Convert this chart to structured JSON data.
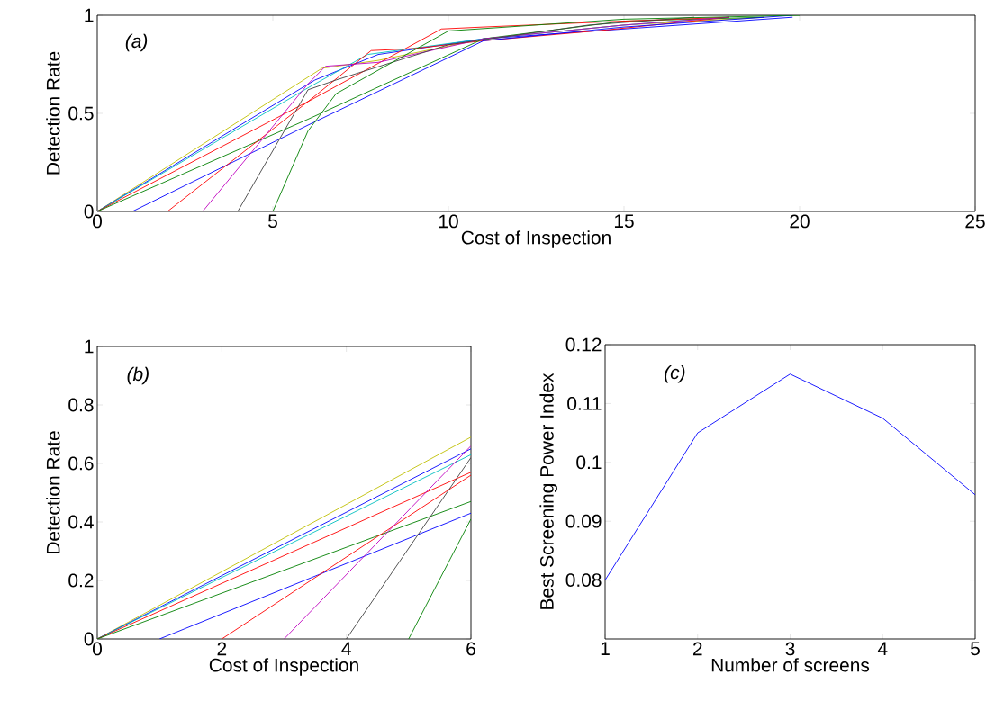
{
  "chart_data": [
    {
      "type": "line",
      "xlabel": "Cost of Inspection",
      "ylabel": "Detection Rate",
      "annotations": [
        "(a)"
      ],
      "xlim": [
        0,
        25
      ],
      "ylim": [
        0,
        1
      ],
      "xticks": [
        0,
        5,
        10,
        15,
        20,
        25
      ],
      "yticks": [
        0,
        0.5,
        1
      ],
      "series": [
        {
          "color": "#bfbf00",
          "x": [
            0,
            6.4,
            8,
            11,
            15,
            19
          ],
          "values": [
            0,
            0.73,
            0.77,
            0.88,
            0.95,
            0.99
          ]
        },
        {
          "color": "#0000ff",
          "x": [
            0,
            6.2,
            8,
            11,
            15,
            19.8
          ],
          "values": [
            0,
            0.67,
            0.8,
            0.88,
            0.93,
            0.99
          ]
        },
        {
          "color": "#00bfbf",
          "x": [
            0,
            6,
            7.7,
            11,
            15,
            18
          ],
          "values": [
            0,
            0.63,
            0.8,
            0.88,
            0.95,
            0.99
          ]
        },
        {
          "color": "#ff0000",
          "x": [
            0,
            6,
            7.8,
            9,
            11,
            14.5,
            18
          ],
          "values": [
            0,
            0.56,
            0.82,
            0.83,
            0.87,
            0.925,
            0.99
          ]
        },
        {
          "color": "#008000",
          "x": [
            0,
            6,
            11,
            15,
            19
          ],
          "values": [
            0,
            0.47,
            0.88,
            0.97,
            0.99
          ]
        },
        {
          "color": "#0000ff",
          "x": [
            1,
            6,
            11,
            15,
            19.8
          ],
          "values": [
            0,
            0.44,
            0.87,
            0.94,
            1.0
          ]
        },
        {
          "color": "#ff0000",
          "x": [
            2,
            6,
            9.8,
            11,
            15,
            18
          ],
          "values": [
            0,
            0.56,
            0.93,
            0.94,
            0.97,
            0.99
          ]
        },
        {
          "color": "#bf00bf",
          "x": [
            3,
            6,
            6.5,
            8,
            11,
            15,
            18
          ],
          "values": [
            0,
            0.65,
            0.74,
            0.76,
            0.88,
            0.95,
            0.99
          ]
        },
        {
          "color": "#404040",
          "x": [
            4,
            6,
            6.8,
            10,
            14,
            17
          ],
          "values": [
            0,
            0.62,
            0.67,
            0.85,
            0.95,
            0.99
          ]
        },
        {
          "color": "#008000",
          "x": [
            5,
            6,
            6.8,
            10,
            15,
            20
          ],
          "values": [
            0,
            0.41,
            0.6,
            0.92,
            0.98,
            1.0
          ]
        }
      ]
    },
    {
      "type": "line",
      "xlabel": "Cost of Inspection",
      "ylabel": "Detection Rate",
      "annotations": [
        "(b)"
      ],
      "xlim": [
        0,
        6
      ],
      "ylim": [
        0,
        1
      ],
      "xticks": [
        0,
        2,
        4,
        6
      ],
      "yticks": [
        0,
        0.2,
        0.4,
        0.6,
        0.8,
        1
      ],
      "series": [
        {
          "color": "#bfbf00",
          "x": [
            0,
            6
          ],
          "values": [
            0,
            0.69
          ]
        },
        {
          "color": "#0000ff",
          "x": [
            0,
            6
          ],
          "values": [
            0,
            0.65
          ]
        },
        {
          "color": "#00bfbf",
          "x": [
            0,
            6
          ],
          "values": [
            0,
            0.63
          ]
        },
        {
          "color": "#ff0000",
          "x": [
            0,
            6
          ],
          "values": [
            0,
            0.57
          ]
        },
        {
          "color": "#008000",
          "x": [
            0,
            6
          ],
          "values": [
            0,
            0.47
          ]
        },
        {
          "color": "#0000ff",
          "x": [
            1,
            6
          ],
          "values": [
            0,
            0.43
          ]
        },
        {
          "color": "#ff0000",
          "x": [
            2,
            6
          ],
          "values": [
            0,
            0.56
          ]
        },
        {
          "color": "#bf00bf",
          "x": [
            3,
            6
          ],
          "values": [
            0,
            0.66
          ]
        },
        {
          "color": "#404040",
          "x": [
            4,
            6
          ],
          "values": [
            0,
            0.62
          ]
        },
        {
          "color": "#008000",
          "x": [
            5,
            6
          ],
          "values": [
            0,
            0.41
          ]
        }
      ]
    },
    {
      "type": "line",
      "xlabel": "Number of screens",
      "ylabel": "Best Screening Power Index",
      "annotations": [
        "(c)"
      ],
      "xlim": [
        1,
        5
      ],
      "ylim": [
        0.07,
        0.12
      ],
      "xticks": [
        1,
        2,
        3,
        4,
        5
      ],
      "yticks": [
        0.08,
        0.09,
        0.1,
        0.11,
        0.12
      ],
      "series": [
        {
          "color": "#0000ff",
          "x": [
            1,
            2,
            3,
            4,
            5
          ],
          "values": [
            0.08,
            0.105,
            0.115,
            0.1075,
            0.0945
          ]
        }
      ]
    }
  ]
}
